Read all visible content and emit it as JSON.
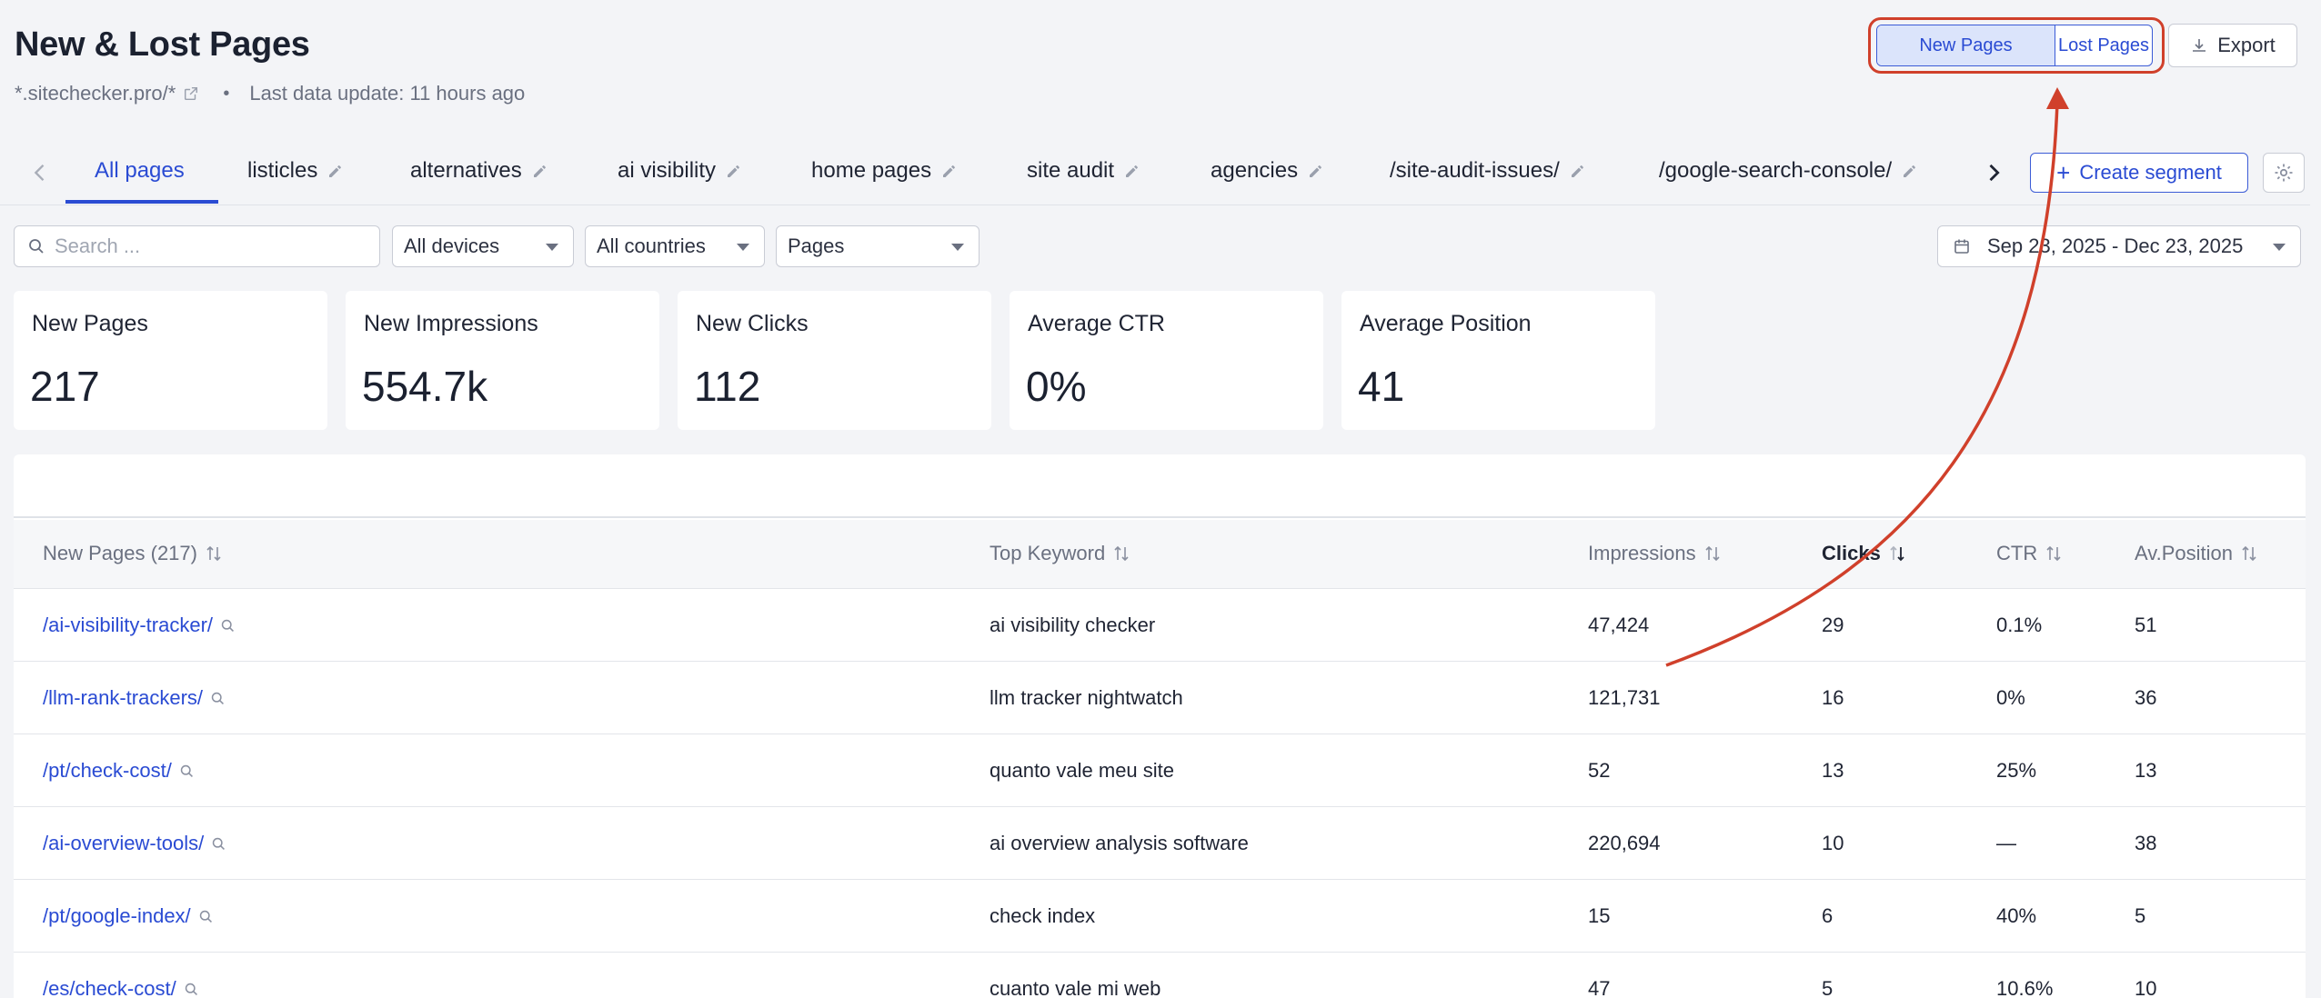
{
  "header": {
    "title": "New & Lost Pages",
    "site": "*.sitechecker.pro/*",
    "dot": "•",
    "last_update": "Last data update: 11 hours ago"
  },
  "toggle": {
    "new_pages": "New Pages",
    "lost_pages": "Lost Pages"
  },
  "export_label": "Export",
  "tabs": [
    {
      "label": "All pages"
    },
    {
      "label": "listicles"
    },
    {
      "label": "alternatives"
    },
    {
      "label": "ai visibility"
    },
    {
      "label": "home pages"
    },
    {
      "label": "site audit"
    },
    {
      "label": "agencies"
    },
    {
      "label": "/site-audit-issues/"
    },
    {
      "label": "/google-search-console/"
    }
  ],
  "create_segment": {
    "plus": "+",
    "label": "Create segment"
  },
  "filters": {
    "search_placeholder": "Search ...",
    "devices": "All devices",
    "countries": "All countries",
    "type": "Pages",
    "date_range": "Sep 23, 2025 - Dec 23, 2025"
  },
  "cards": [
    {
      "label": "New Pages",
      "value": "217"
    },
    {
      "label": "New Impressions",
      "value": "554.7k"
    },
    {
      "label": "New Clicks",
      "value": "112"
    },
    {
      "label": "Average CTR",
      "value": "0%"
    },
    {
      "label": "Average Position",
      "value": "41"
    }
  ],
  "table": {
    "headers": {
      "page": "New Pages (217)",
      "keyword": "Top Keyword",
      "impressions": "Impressions",
      "clicks": "Clicks",
      "ctr": "CTR",
      "position": "Av.Position"
    },
    "rows": [
      {
        "page": "/ai-visibility-tracker/",
        "keyword": "ai visibility checker",
        "impressions": "47,424",
        "clicks": "29",
        "ctr": "0.1%",
        "position": "51"
      },
      {
        "page": "/llm-rank-trackers/",
        "keyword": "llm tracker nightwatch",
        "impressions": "121,731",
        "clicks": "16",
        "ctr": "0%",
        "position": "36"
      },
      {
        "page": "/pt/check-cost/",
        "keyword": "quanto vale meu site",
        "impressions": "52",
        "clicks": "13",
        "ctr": "25%",
        "position": "13"
      },
      {
        "page": "/ai-overview-tools/",
        "keyword": "ai overview analysis software",
        "impressions": "220,694",
        "clicks": "10",
        "ctr": "—",
        "position": "38"
      },
      {
        "page": "/pt/google-index/",
        "keyword": "check index",
        "impressions": "15",
        "clicks": "6",
        "ctr": "40%",
        "position": "5"
      },
      {
        "page": "/es/check-cost/",
        "keyword": "cuanto vale mi web",
        "impressions": "47",
        "clicks": "5",
        "ctr": "10.6%",
        "position": "10"
      }
    ]
  },
  "colors": {
    "accent": "#2a4bd3",
    "annotation": "#d0402b"
  }
}
